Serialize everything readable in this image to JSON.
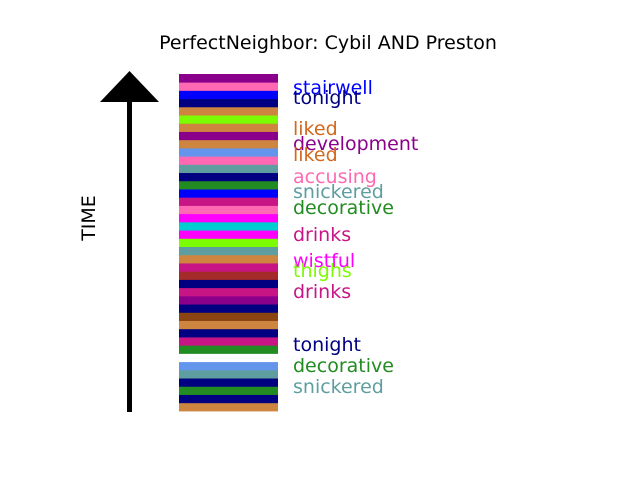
{
  "chart_data": {
    "type": "timeline",
    "title": "PerfectNeighbor: Cybil AND Preston",
    "ylabel": "TIME",
    "segments": [
      {
        "color": "#CD853F"
      },
      {
        "color": "#000080"
      },
      {
        "color": "#228B22"
      },
      {
        "color": "#000080"
      },
      {
        "color": "#5F9EA0"
      },
      {
        "color": "#6495ED"
      },
      {
        "color": "#FFFFFF"
      },
      {
        "color": "#228B22"
      },
      {
        "color": "#C71585"
      },
      {
        "color": "#000080"
      },
      {
        "color": "#CD853F"
      },
      {
        "color": "#8B4513"
      },
      {
        "color": "#000080"
      },
      {
        "color": "#8B008B"
      },
      {
        "color": "#C71585"
      },
      {
        "color": "#000080"
      },
      {
        "color": "#A52A2A"
      },
      {
        "color": "#C71585"
      },
      {
        "color": "#CD853F"
      },
      {
        "color": "#5F9EA0"
      },
      {
        "color": "#7CFC00"
      },
      {
        "color": "#FF00FF"
      },
      {
        "color": "#00CED1"
      },
      {
        "color": "#FF00FF"
      },
      {
        "color": "#FF69B4"
      },
      {
        "color": "#C71585"
      },
      {
        "color": "#0000FF"
      },
      {
        "color": "#228B22"
      },
      {
        "color": "#000080"
      },
      {
        "color": "#5F9EA0"
      },
      {
        "color": "#FF69B4"
      },
      {
        "color": "#6495ED"
      },
      {
        "color": "#CD853F"
      },
      {
        "color": "#8B008B"
      },
      {
        "color": "#CD853F"
      },
      {
        "color": "#7CFC00"
      },
      {
        "color": "#CD853F"
      },
      {
        "color": "#000080"
      },
      {
        "color": "#0000FF"
      },
      {
        "color": "#FF69B4"
      },
      {
        "color": "#8B008B"
      }
    ],
    "labels": [
      {
        "text": "stairwell",
        "color": "#0000FF"
      },
      {
        "text": "tonight",
        "color": "#000080"
      },
      {
        "text": "liked",
        "color": "#D2691E"
      },
      {
        "text": "development",
        "color": "#8B008B"
      },
      {
        "text": "liked",
        "color": "#D2691E"
      },
      {
        "text": "accusing",
        "color": "#FF69B4"
      },
      {
        "text": "snickered",
        "color": "#5F9EA0"
      },
      {
        "text": "decorative",
        "color": "#228B22"
      },
      {
        "text": "drinks",
        "color": "#C71585"
      },
      {
        "text": "wistful",
        "color": "#FF00FF"
      },
      {
        "text": "thighs",
        "color": "#7CFC00"
      },
      {
        "text": "drinks",
        "color": "#C71585"
      },
      {
        "text": "tonight",
        "color": "#000080"
      },
      {
        "text": "decorative",
        "color": "#228B22"
      },
      {
        "text": "snickered",
        "color": "#5F9EA0"
      }
    ]
  }
}
